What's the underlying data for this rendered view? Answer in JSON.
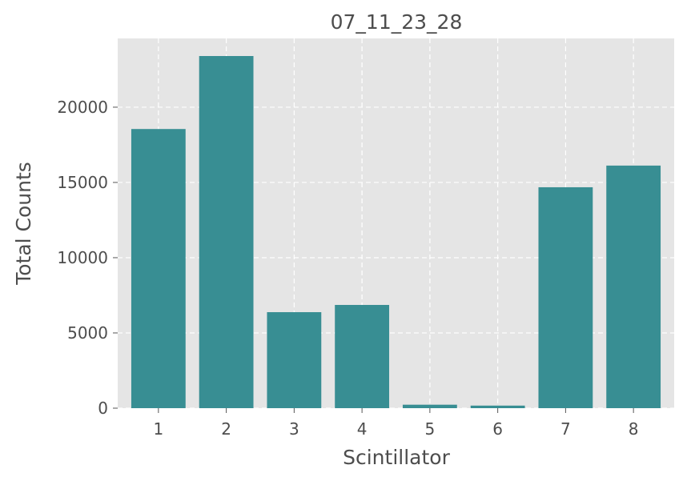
{
  "chart_data": {
    "type": "bar",
    "title": "07_11_23_28",
    "xlabel": "Scintillator",
    "ylabel": "Total Counts",
    "categories": [
      "1",
      "2",
      "3",
      "4",
      "5",
      "6",
      "7",
      "8"
    ],
    "values": [
      18550,
      23400,
      6380,
      6860,
      230,
      170,
      14680,
      16120
    ],
    "ylim": [
      0,
      24570
    ],
    "yticks": [
      0,
      5000,
      10000,
      15000,
      20000
    ],
    "grid": true,
    "bar_color": "#388e93",
    "background": "#e5e5e5"
  }
}
